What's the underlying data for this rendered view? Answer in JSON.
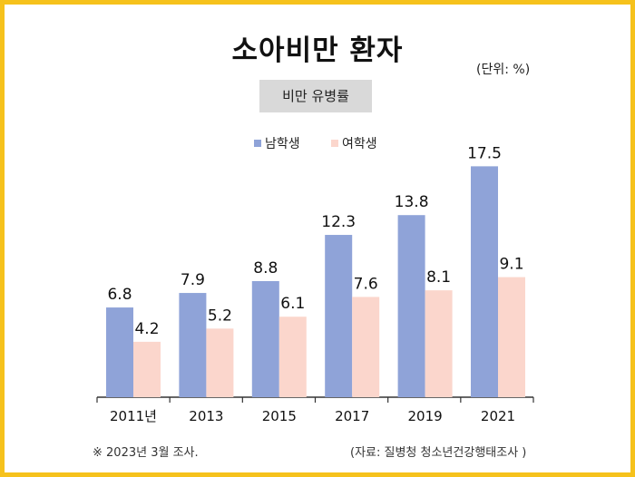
{
  "title": "소아비만 환자",
  "unit": "(단위: %)",
  "subtitle": "비만 유병률",
  "footnote": "※ 2023년 3월 조사.",
  "source": "(자료: 질병청 청소년건강행태조사 )",
  "colors": {
    "border": "#f6c21c",
    "male": "#8fa3d8",
    "female": "#fbd6cc",
    "axis": "#333333"
  },
  "chart_data": {
    "type": "bar",
    "title": "소아비만 환자",
    "subtitle": "비만 유병률",
    "ylabel": "(단위: %)",
    "categories": [
      "2011년",
      "2013",
      "2015",
      "2017",
      "2019",
      "2021"
    ],
    "series": [
      {
        "name": "남학생",
        "values": [
          6.8,
          7.9,
          8.8,
          12.3,
          13.8,
          17.5
        ]
      },
      {
        "name": "여학생",
        "values": [
          4.2,
          5.2,
          6.1,
          7.6,
          8.1,
          9.1
        ]
      }
    ],
    "ylim": [
      0,
      20
    ],
    "grid": false,
    "legend": "top-center"
  }
}
